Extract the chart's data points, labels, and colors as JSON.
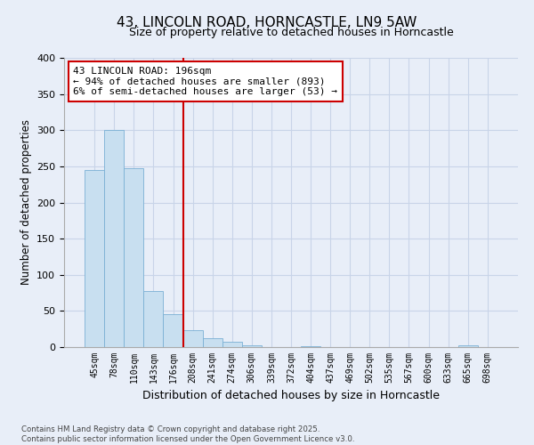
{
  "title": "43, LINCOLN ROAD, HORNCASTLE, LN9 5AW",
  "subtitle": "Size of property relative to detached houses in Horncastle",
  "xlabel": "Distribution of detached houses by size in Horncastle",
  "ylabel": "Number of detached properties",
  "bar_labels": [
    "45sqm",
    "78sqm",
    "110sqm",
    "143sqm",
    "176sqm",
    "208sqm",
    "241sqm",
    "274sqm",
    "306sqm",
    "339sqm",
    "372sqm",
    "404sqm",
    "437sqm",
    "469sqm",
    "502sqm",
    "535sqm",
    "567sqm",
    "600sqm",
    "633sqm",
    "665sqm",
    "698sqm"
  ],
  "bar_values": [
    245,
    300,
    248,
    78,
    45,
    23,
    12,
    8,
    3,
    0,
    0,
    1,
    0,
    0,
    0,
    0,
    0,
    0,
    0,
    2,
    0
  ],
  "bar_color": "#c8dff0",
  "bar_edge_color": "#7ab0d4",
  "vline_color": "#cc0000",
  "annotation_text_line1": "43 LINCOLN ROAD: 196sqm",
  "annotation_text_line2": "← 94% of detached houses are smaller (893)",
  "annotation_text_line3": "6% of semi-detached houses are larger (53) →",
  "annotation_box_color": "#ffffff",
  "annotation_box_edge": "#cc0000",
  "ylim": [
    0,
    400
  ],
  "yticks": [
    0,
    50,
    100,
    150,
    200,
    250,
    300,
    350,
    400
  ],
  "grid_color": "#c8d4e8",
  "background_color": "#e8eef8",
  "footer_line1": "Contains HM Land Registry data © Crown copyright and database right 2025.",
  "footer_line2": "Contains public sector information licensed under the Open Government Licence v3.0."
}
